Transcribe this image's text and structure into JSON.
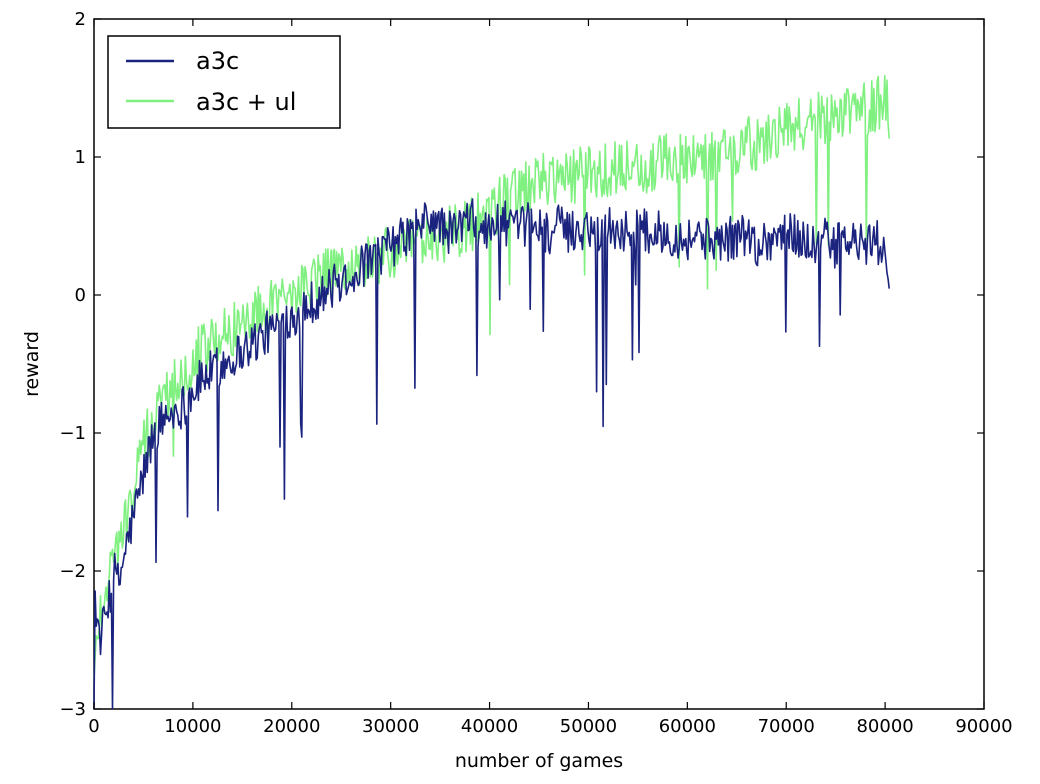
{
  "chart_data": {
    "type": "line",
    "title": "",
    "xlabel": "number of games",
    "ylabel": "reward",
    "xlim": [
      0,
      90000
    ],
    "ylim": [
      -3,
      2
    ],
    "xticks": [
      0,
      10000,
      20000,
      30000,
      40000,
      50000,
      60000,
      70000,
      80000,
      90000
    ],
    "xtick_labels": [
      "0",
      "10000",
      "20000",
      "30000",
      "40000",
      "50000",
      "60000",
      "70000",
      "80000",
      "90000"
    ],
    "yticks": [
      -3,
      -2,
      -1,
      0,
      1,
      2
    ],
    "ytick_labels": [
      "−3",
      "−2",
      "−1",
      "0",
      "1",
      "2"
    ],
    "grid": false,
    "legend_position": "upper-left",
    "series": [
      {
        "name": "a3c",
        "color": "#1a237e",
        "x": [
          0,
          500,
          1000,
          1500,
          2000,
          2500,
          3000,
          4000,
          5000,
          6000,
          7000,
          8000,
          9000,
          10000,
          11000,
          12000,
          13000,
          14000,
          15000,
          16000,
          17000,
          18000,
          19000,
          20000,
          22000,
          24000,
          26000,
          28000,
          30000,
          32000,
          33000,
          34000,
          35000,
          36000,
          37000,
          38000,
          39000,
          40000,
          41000,
          42000,
          43000,
          44000,
          45000,
          46000,
          47000,
          48000,
          50000,
          51000,
          52000,
          54000,
          55000,
          56000,
          58000,
          60000,
          61000,
          62000,
          64000,
          66000,
          67000,
          68000,
          70000,
          72000,
          73000,
          74000,
          75000,
          76000,
          78000,
          79000,
          80000,
          80500
        ],
        "y": [
          -2.1,
          -2.5,
          -2.4,
          -2.2,
          -2.0,
          -2.1,
          -1.9,
          -1.6,
          -1.3,
          -1.0,
          -0.9,
          -0.85,
          -0.8,
          -0.7,
          -0.6,
          -0.55,
          -0.5,
          -0.45,
          -0.4,
          -0.35,
          -0.3,
          -0.25,
          -0.2,
          -0.15,
          -0.05,
          0.05,
          0.15,
          0.25,
          0.35,
          0.45,
          0.5,
          0.55,
          0.5,
          0.45,
          0.5,
          0.55,
          0.5,
          0.45,
          0.55,
          0.5,
          0.45,
          0.55,
          0.5,
          0.45,
          0.5,
          0.45,
          0.5,
          0.45,
          0.5,
          0.45,
          0.5,
          0.45,
          0.45,
          0.4,
          0.45,
          0.4,
          0.4,
          0.45,
          0.35,
          0.4,
          0.45,
          0.4,
          0.35,
          0.4,
          0.35,
          0.4,
          0.35,
          0.4,
          0.3,
          0.15
        ]
      },
      {
        "name": "a3c + ul",
        "color": "#80f080",
        "x": [
          0,
          500,
          1000,
          1500,
          2000,
          2500,
          3000,
          4000,
          5000,
          6000,
          7000,
          8000,
          9000,
          10000,
          11000,
          12000,
          13000,
          14000,
          15000,
          16000,
          17000,
          18000,
          19000,
          20000,
          22000,
          24000,
          26000,
          28000,
          30000,
          32000,
          34000,
          36000,
          38000,
          40000,
          42000,
          44000,
          46000,
          48000,
          50000,
          52000,
          54000,
          56000,
          58000,
          60000,
          62000,
          64000,
          66000,
          68000,
          70000,
          72000,
          74000,
          76000,
          78000,
          80000,
          80500
        ],
        "y": [
          -2.8,
          -2.3,
          -2.2,
          -2.0,
          -1.9,
          -1.8,
          -1.7,
          -1.4,
          -1.1,
          -0.9,
          -0.75,
          -0.65,
          -0.55,
          -0.45,
          -0.4,
          -0.35,
          -0.3,
          -0.25,
          -0.2,
          -0.15,
          -0.1,
          -0.05,
          0.0,
          0.0,
          0.1,
          0.15,
          0.2,
          0.25,
          0.3,
          0.35,
          0.4,
          0.45,
          0.5,
          0.6,
          0.7,
          0.8,
          0.85,
          0.85,
          0.9,
          0.9,
          0.95,
          0.9,
          1.0,
          1.0,
          1.0,
          1.05,
          1.1,
          1.1,
          1.2,
          1.25,
          1.3,
          1.35,
          1.35,
          1.4,
          1.3
        ]
      }
    ]
  }
}
